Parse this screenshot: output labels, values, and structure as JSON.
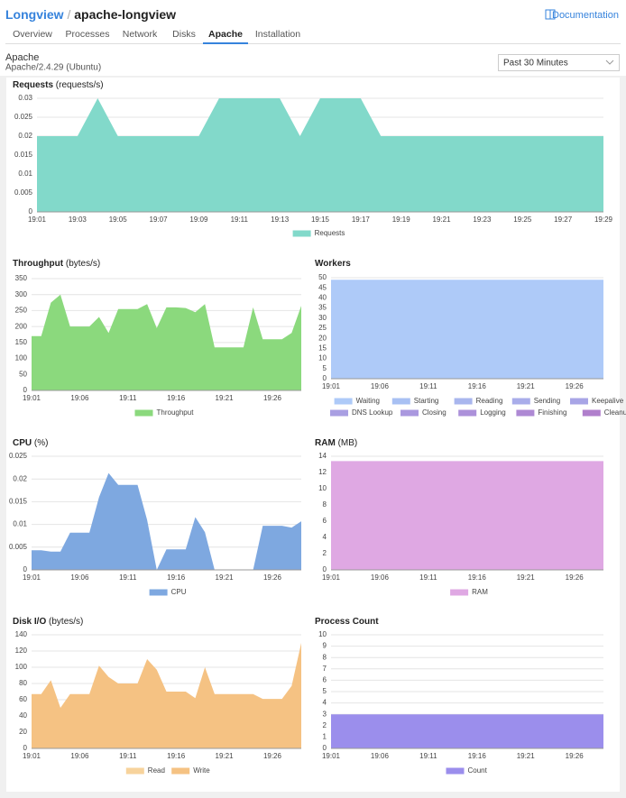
{
  "header": {
    "root": "Longview",
    "separator": "/",
    "app": "apache-longview",
    "docs": "Documentation"
  },
  "tabs": [
    "Overview",
    "Processes",
    "Network",
    "Disks",
    "Apache",
    "Installation"
  ],
  "active_tab": 4,
  "service": {
    "name": "Apache",
    "version": "Apache/2.4.29 (Ubuntu)"
  },
  "range_select": "Past 30 Minutes",
  "chart_data": [
    {
      "type": "area",
      "title": "Requests",
      "unit": "(requests/s)",
      "categories": [
        "19:01",
        null,
        "19:03",
        null,
        "19:05",
        null,
        "19:07",
        null,
        "19:09",
        null,
        "19:11",
        null,
        "19:13",
        null,
        "19:15",
        null,
        "19:17",
        null,
        "19:19",
        null,
        "19:21",
        null,
        "19:23",
        null,
        "19:25",
        null,
        "19:27",
        null,
        "19:29"
      ],
      "series": [
        {
          "name": "Requests",
          "color": "#82d9ca",
          "values": [
            0.02,
            0.02,
            0.02,
            0.03,
            0.02,
            0.02,
            0.02,
            0.02,
            0.02,
            0.03,
            0.03,
            0.03,
            0.03,
            0.02,
            0.03,
            0.03,
            0.03,
            0.02,
            0.02,
            0.02,
            0.02,
            0.02,
            0.02,
            0.02,
            0.02,
            0.02,
            0.02,
            0.02,
            0.02
          ]
        }
      ],
      "ylim": [
        0,
        0.03
      ],
      "yticks": [
        0,
        0.005,
        0.01,
        0.015,
        0.02,
        0.025,
        0.03
      ],
      "grid": true
    },
    {
      "type": "area",
      "title": "Throughput",
      "unit": "(bytes/s)",
      "categories": [
        "19:01",
        null,
        null,
        null,
        null,
        "19:06",
        null,
        null,
        null,
        null,
        "19:11",
        null,
        null,
        null,
        null,
        "19:16",
        null,
        null,
        null,
        null,
        "19:21",
        null,
        null,
        null,
        null,
        "19:26",
        null,
        null,
        null
      ],
      "series": [
        {
          "name": "Throughput",
          "color": "#8bd97d",
          "values": [
            170,
            170,
            275,
            300,
            200,
            200,
            200,
            230,
            180,
            255,
            255,
            255,
            270,
            195,
            260,
            260,
            258,
            245,
            270,
            135,
            135,
            135,
            135,
            260,
            160,
            160,
            160,
            180,
            265
          ]
        }
      ],
      "ylim": [
        0,
        350
      ],
      "yticks": [
        0,
        50,
        100,
        150,
        200,
        250,
        300,
        350
      ],
      "grid": true
    },
    {
      "type": "area",
      "title": "Workers",
      "stacked": true,
      "categories": [
        "19:01",
        null,
        null,
        null,
        null,
        "19:06",
        null,
        null,
        null,
        null,
        "19:11",
        null,
        null,
        null,
        null,
        "19:16",
        null,
        null,
        null,
        null,
        "19:21",
        null,
        null,
        null,
        null,
        "19:26",
        null,
        null,
        null
      ],
      "series": [
        {
          "name": "Waiting",
          "color": "#aecaf8",
          "values": [
            49,
            49,
            49,
            49,
            49,
            49,
            49,
            49,
            49,
            49,
            49,
            49,
            49,
            49,
            49,
            49,
            49,
            49,
            49,
            49,
            49,
            49,
            49,
            49,
            49,
            49,
            49,
            49,
            49
          ]
        },
        {
          "name": "Starting",
          "color": "#a8c0f3",
          "values": [
            0,
            0,
            0,
            0,
            0,
            0,
            0,
            0,
            0,
            0,
            0,
            0,
            0,
            0,
            0,
            0,
            0,
            0,
            0,
            0,
            0,
            0,
            0,
            0,
            0,
            0,
            0,
            0,
            0
          ]
        },
        {
          "name": "Reading",
          "color": "#a9b6ee",
          "values": [
            0,
            0,
            0,
            0,
            0,
            0,
            0,
            0,
            0,
            0,
            0,
            0,
            0,
            0,
            0,
            0,
            0,
            0,
            0,
            0,
            0,
            0,
            0,
            0,
            0,
            0,
            0,
            0,
            0
          ]
        },
        {
          "name": "Sending",
          "color": "#a9adea",
          "values": [
            0,
            0,
            0,
            0,
            0,
            0,
            0,
            0,
            0,
            0,
            0,
            0,
            0,
            0,
            0,
            0,
            0,
            0,
            0,
            0,
            0,
            0,
            0,
            0,
            0,
            0,
            0,
            0,
            0
          ]
        },
        {
          "name": "Keepalive",
          "color": "#a8a5e6",
          "values": [
            0,
            0,
            0,
            0,
            0,
            0,
            0,
            0,
            0,
            0,
            0,
            0,
            0,
            0,
            0,
            0,
            0,
            0,
            0,
            0,
            0,
            0,
            0,
            0,
            0,
            0,
            0,
            0,
            0
          ]
        },
        {
          "name": "DNS Lookup",
          "color": "#a99fe2",
          "values": [
            0,
            0,
            0,
            0,
            0,
            0,
            0,
            0,
            0,
            0,
            0,
            0,
            0,
            0,
            0,
            0,
            0,
            0,
            0,
            0,
            0,
            0,
            0,
            0,
            0,
            0,
            0,
            0,
            0
          ]
        },
        {
          "name": "Closing",
          "color": "#aa98df",
          "values": [
            0,
            0,
            0,
            0,
            0,
            0,
            0,
            0,
            0,
            0,
            0,
            0,
            0,
            0,
            0,
            0,
            0,
            0,
            0,
            0,
            0,
            0,
            0,
            0,
            0,
            0,
            0,
            0,
            0
          ]
        },
        {
          "name": "Logging",
          "color": "#ac91da",
          "values": [
            0,
            0,
            0,
            0,
            0,
            0,
            0,
            0,
            0,
            0,
            0,
            0,
            0,
            0,
            0,
            0,
            0,
            0,
            0,
            0,
            0,
            0,
            0,
            0,
            0,
            0,
            0,
            0,
            0
          ]
        },
        {
          "name": "Finishing",
          "color": "#ae89d4",
          "values": [
            0,
            0,
            0,
            0,
            0,
            0,
            0,
            0,
            0,
            0,
            0,
            0,
            0,
            0,
            0,
            0,
            0,
            0,
            0,
            0,
            0,
            0,
            0,
            0,
            0,
            0,
            0,
            0,
            0
          ]
        },
        {
          "name": "Cleanup",
          "color": "#b07fcc",
          "values": [
            0,
            0,
            0,
            0,
            0,
            0,
            0,
            0,
            0,
            0,
            0,
            0,
            0,
            0,
            0,
            0,
            0,
            0,
            0,
            0,
            0,
            0,
            0,
            0,
            0,
            0,
            0,
            0,
            0
          ]
        }
      ],
      "ylim": [
        0,
        50
      ],
      "yticks": [
        0,
        5,
        10,
        15,
        20,
        25,
        30,
        35,
        40,
        45,
        50
      ],
      "grid": true
    },
    {
      "type": "area",
      "title": "CPU",
      "unit": "(%)",
      "categories": [
        "19:01",
        null,
        null,
        null,
        null,
        "19:06",
        null,
        null,
        null,
        null,
        "19:11",
        null,
        null,
        null,
        null,
        "19:16",
        null,
        null,
        null,
        null,
        "19:21",
        null,
        null,
        null,
        null,
        "19:26",
        null,
        null,
        null
      ],
      "series": [
        {
          "name": "CPU",
          "color": "#7ea8e0",
          "values": [
            0.0043,
            0.0043,
            0.004,
            0.004,
            0.0082,
            0.0082,
            0.0082,
            0.016,
            0.0213,
            0.0187,
            0.0187,
            0.0187,
            0.011,
            0,
            0.0045,
            0.0045,
            0.0045,
            0.0116,
            0.0083,
            0,
            0,
            0,
            0,
            0,
            0.0097,
            0.0097,
            0.0097,
            0.0093,
            0.0107
          ]
        }
      ],
      "ylim": [
        0,
        0.025
      ],
      "yticks": [
        0,
        0.005,
        0.01,
        0.015,
        0.02,
        0.025
      ],
      "grid": true
    },
    {
      "type": "area",
      "title": "RAM",
      "unit": "(MB)",
      "categories": [
        "19:01",
        null,
        null,
        null,
        null,
        "19:06",
        null,
        null,
        null,
        null,
        "19:11",
        null,
        null,
        null,
        null,
        "19:16",
        null,
        null,
        null,
        null,
        "19:21",
        null,
        null,
        null,
        null,
        "19:26",
        null,
        null,
        null
      ],
      "series": [
        {
          "name": "RAM",
          "color": "#dfa8e3",
          "values": [
            13.4,
            13.4,
            13.4,
            13.4,
            13.4,
            13.4,
            13.4,
            13.4,
            13.4,
            13.4,
            13.4,
            13.4,
            13.4,
            13.4,
            13.4,
            13.4,
            13.4,
            13.4,
            13.4,
            13.4,
            13.4,
            13.4,
            13.4,
            13.4,
            13.4,
            13.4,
            13.4,
            13.4,
            13.4
          ]
        }
      ],
      "ylim": [
        0,
        14
      ],
      "yticks": [
        0,
        2,
        4,
        6,
        8,
        10,
        12,
        14
      ],
      "grid": true
    },
    {
      "type": "area",
      "title": "Disk I/O",
      "unit": "(bytes/s)",
      "stacked": true,
      "categories": [
        "19:01",
        null,
        null,
        null,
        null,
        "19:06",
        null,
        null,
        null,
        null,
        "19:11",
        null,
        null,
        null,
        null,
        "19:16",
        null,
        null,
        null,
        null,
        "19:21",
        null,
        null,
        null,
        null,
        "19:26",
        null,
        null,
        null
      ],
      "series": [
        {
          "name": "Read",
          "color": "#f7d39c",
          "values": [
            0,
            0,
            0,
            0,
            0,
            0,
            0,
            0,
            0,
            0,
            0,
            0,
            0,
            0,
            0,
            0,
            0,
            0,
            0,
            0,
            0,
            0,
            0,
            0,
            0,
            0,
            0,
            0,
            0
          ]
        },
        {
          "name": "Write",
          "color": "#f5c283",
          "values": [
            67,
            67,
            84,
            50,
            67,
            67,
            67,
            102,
            88,
            80,
            80,
            80,
            110,
            97,
            70,
            70,
            70,
            62,
            100,
            67,
            67,
            67,
            67,
            67,
            61,
            61,
            61,
            77,
            130
          ]
        }
      ],
      "ylim": [
        0,
        140
      ],
      "yticks": [
        0,
        20,
        40,
        60,
        80,
        100,
        120,
        140
      ],
      "grid": true
    },
    {
      "type": "area",
      "title": "Process Count",
      "categories": [
        "19:01",
        null,
        null,
        null,
        null,
        "19:06",
        null,
        null,
        null,
        null,
        "19:11",
        null,
        null,
        null,
        null,
        "19:16",
        null,
        null,
        null,
        null,
        "19:21",
        null,
        null,
        null,
        null,
        "19:26",
        null,
        null,
        null
      ],
      "series": [
        {
          "name": "Count",
          "color": "#9b8eec",
          "values": [
            3,
            3,
            3,
            3,
            3,
            3,
            3,
            3,
            3,
            3,
            3,
            3,
            3,
            3,
            3,
            3,
            3,
            3,
            3,
            3,
            3,
            3,
            3,
            3,
            3,
            3,
            3,
            3,
            3
          ]
        }
      ],
      "ylim": [
        0,
        10
      ],
      "yticks": [
        0,
        1,
        2,
        3,
        4,
        5,
        6,
        7,
        8,
        9,
        10
      ],
      "grid": true
    }
  ]
}
